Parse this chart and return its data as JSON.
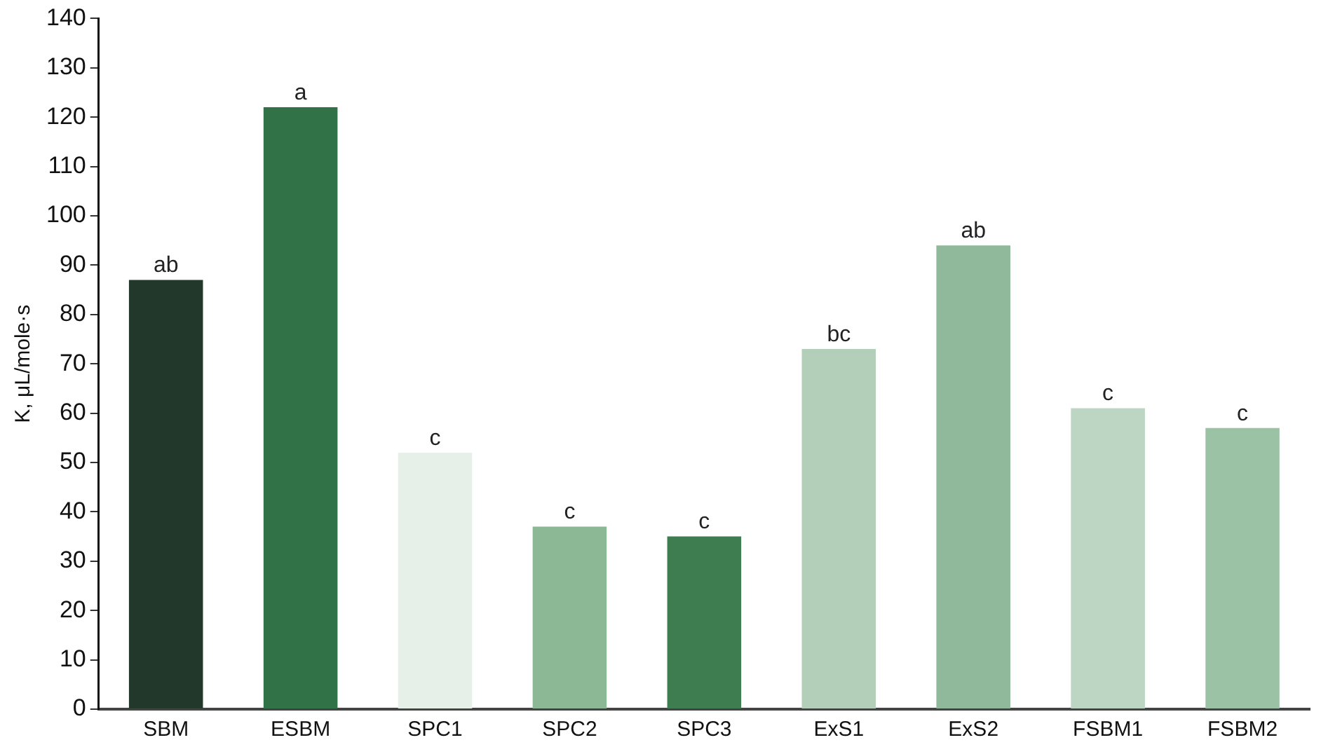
{
  "chart_data": {
    "type": "bar",
    "ylabel": "K, μL/mole·s",
    "categories": [
      "SBM",
      "ESBM",
      "SPC1",
      "SPC2",
      "SPC3",
      "ExS1",
      "ExS2",
      "FSBM1",
      "FSBM2"
    ],
    "values": [
      87,
      122,
      52,
      37,
      35,
      73,
      94,
      61,
      57
    ],
    "colors": [
      "#22382b",
      "#317347",
      "#e6efe8",
      "#8db896",
      "#3d7d4f",
      "#b3cfb9",
      "#8fb99a",
      "#bdd6c3",
      "#9cc2a6"
    ],
    "ylim": [
      0,
      140
    ],
    "yticks": [
      0,
      10,
      20,
      30,
      40,
      50,
      60,
      70,
      80,
      90,
      100,
      110,
      120,
      130,
      140
    ],
    "grid": false,
    "legend": false,
    "annotations": [
      {
        "text": "ab",
        "x": "SBM",
        "y": 87
      },
      {
        "text": "a",
        "x": "ESBM",
        "y": 122
      },
      {
        "text": "c",
        "x": "SPC1",
        "y": 52
      },
      {
        "text": "c",
        "x": "SPC2",
        "y": 37
      },
      {
        "text": "c",
        "x": "SPC3",
        "y": 35
      },
      {
        "text": "bc",
        "x": "ExS1",
        "y": 73
      },
      {
        "text": "ab",
        "x": "ExS2",
        "y": 94
      },
      {
        "text": "c",
        "x": "FSBM1",
        "y": 61
      },
      {
        "text": "c",
        "x": "FSBM2",
        "y": 57
      }
    ]
  }
}
